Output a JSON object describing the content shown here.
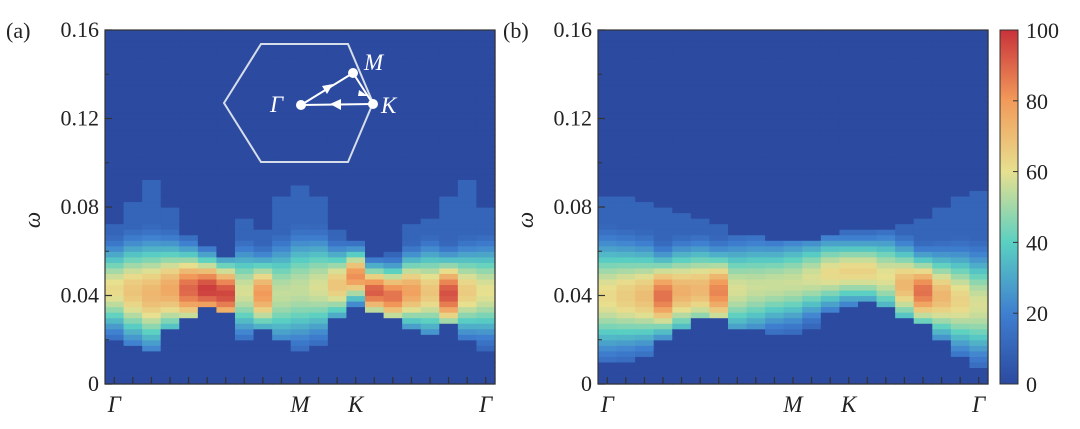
{
  "chart_data": [
    {
      "type": "heatmap",
      "panel_label": "(a)",
      "ylabel": "ω",
      "ylim": [
        0,
        0.16
      ],
      "yticks": [
        {
          "value": 0,
          "label": "0"
        },
        {
          "value": 0.04,
          "label": "0.04"
        },
        {
          "value": 0.08,
          "label": "0.08"
        },
        {
          "value": 0.12,
          "label": "0.12"
        },
        {
          "value": 0.16,
          "label": "0.16"
        }
      ],
      "x_points": 21,
      "xticks": [
        {
          "index": 0,
          "label": "Γ"
        },
        {
          "index": 10,
          "label": "M"
        },
        {
          "index": 13,
          "label": "K"
        },
        {
          "index": 20,
          "label": "Γ"
        }
      ],
      "colorscale_range": [
        0,
        100
      ],
      "columns": [
        {
          "peak": 0.043,
          "width": 0.013,
          "amp": 62,
          "top": 0.073,
          "bottom": 0.019
        },
        {
          "peak": 0.042,
          "width": 0.015,
          "amp": 68,
          "top": 0.083,
          "bottom": 0.017
        },
        {
          "peak": 0.041,
          "width": 0.016,
          "amp": 72,
          "top": 0.093,
          "bottom": 0.015
        },
        {
          "peak": 0.043,
          "width": 0.014,
          "amp": 76,
          "top": 0.079,
          "bottom": 0.024
        },
        {
          "peak": 0.043,
          "width": 0.012,
          "amp": 90,
          "top": 0.068,
          "bottom": 0.03
        },
        {
          "peak": 0.043,
          "width": 0.01,
          "amp": 98,
          "top": 0.062,
          "bottom": 0.035
        },
        {
          "peak": 0.041,
          "width": 0.01,
          "amp": 96,
          "top": 0.057,
          "bottom": 0.033
        },
        {
          "peak": 0.042,
          "width": 0.013,
          "amp": 58,
          "top": 0.075,
          "bottom": 0.021
        },
        {
          "peak": 0.041,
          "width": 0.011,
          "amp": 80,
          "top": 0.07,
          "bottom": 0.024
        },
        {
          "peak": 0.041,
          "width": 0.015,
          "amp": 55,
          "top": 0.086,
          "bottom": 0.02
        },
        {
          "peak": 0.043,
          "width": 0.016,
          "amp": 55,
          "top": 0.09,
          "bottom": 0.016
        },
        {
          "peak": 0.044,
          "width": 0.015,
          "amp": 58,
          "top": 0.084,
          "bottom": 0.018
        },
        {
          "peak": 0.045,
          "width": 0.011,
          "amp": 68,
          "top": 0.069,
          "bottom": 0.03
        },
        {
          "peak": 0.049,
          "width": 0.008,
          "amp": 82,
          "top": 0.065,
          "bottom": 0.035
        },
        {
          "peak": 0.042,
          "width": 0.008,
          "amp": 92,
          "top": 0.058,
          "bottom": 0.032
        },
        {
          "peak": 0.04,
          "width": 0.009,
          "amp": 88,
          "top": 0.059,
          "bottom": 0.029
        },
        {
          "peak": 0.042,
          "width": 0.011,
          "amp": 78,
          "top": 0.072,
          "bottom": 0.025
        },
        {
          "peak": 0.042,
          "width": 0.013,
          "amp": 68,
          "top": 0.075,
          "bottom": 0.022
        },
        {
          "peak": 0.041,
          "width": 0.011,
          "amp": 94,
          "top": 0.086,
          "bottom": 0.028
        },
        {
          "peak": 0.042,
          "width": 0.013,
          "amp": 66,
          "top": 0.093,
          "bottom": 0.02
        },
        {
          "peak": 0.042,
          "width": 0.014,
          "amp": 60,
          "top": 0.081,
          "bottom": 0.016
        }
      ],
      "inset": {
        "description": "hexagonal Brillouin zone with path Γ → M → K → Γ",
        "labels": {
          "gamma": "Γ",
          "m": "M",
          "k": "K"
        }
      }
    },
    {
      "type": "heatmap",
      "panel_label": "(b)",
      "ylabel": "ω",
      "ylim": [
        0,
        0.16
      ],
      "yticks": [
        {
          "value": 0,
          "label": "0"
        },
        {
          "value": 0.04,
          "label": "0.04"
        },
        {
          "value": 0.08,
          "label": "0.08"
        },
        {
          "value": 0.12,
          "label": "0.12"
        },
        {
          "value": 0.16,
          "label": "0.16"
        }
      ],
      "x_points": 21,
      "xticks": [
        {
          "index": 0,
          "label": "Γ"
        },
        {
          "index": 10,
          "label": "M"
        },
        {
          "index": 13,
          "label": "K"
        },
        {
          "index": 20,
          "label": "Γ"
        }
      ],
      "colorscale_range": [
        0,
        100
      ],
      "columns": [
        {
          "peak": 0.04,
          "width": 0.017,
          "amp": 62,
          "top": 0.086,
          "bottom": 0.01
        },
        {
          "peak": 0.04,
          "width": 0.016,
          "amp": 66,
          "top": 0.086,
          "bottom": 0.011
        },
        {
          "peak": 0.04,
          "width": 0.015,
          "amp": 70,
          "top": 0.083,
          "bottom": 0.013
        },
        {
          "peak": 0.04,
          "width": 0.012,
          "amp": 88,
          "top": 0.079,
          "bottom": 0.02
        },
        {
          "peak": 0.042,
          "width": 0.013,
          "amp": 74,
          "top": 0.077,
          "bottom": 0.025
        },
        {
          "peak": 0.043,
          "width": 0.013,
          "amp": 72,
          "top": 0.075,
          "bottom": 0.029
        },
        {
          "peak": 0.042,
          "width": 0.012,
          "amp": 84,
          "top": 0.072,
          "bottom": 0.031
        },
        {
          "peak": 0.043,
          "width": 0.014,
          "amp": 58,
          "top": 0.068,
          "bottom": 0.026
        },
        {
          "peak": 0.044,
          "width": 0.014,
          "amp": 56,
          "top": 0.068,
          "bottom": 0.024
        },
        {
          "peak": 0.045,
          "width": 0.013,
          "amp": 56,
          "top": 0.066,
          "bottom": 0.022
        },
        {
          "peak": 0.046,
          "width": 0.013,
          "amp": 56,
          "top": 0.065,
          "bottom": 0.022
        },
        {
          "peak": 0.048,
          "width": 0.012,
          "amp": 58,
          "top": 0.066,
          "bottom": 0.025
        },
        {
          "peak": 0.05,
          "width": 0.011,
          "amp": 62,
          "top": 0.068,
          "bottom": 0.032
        },
        {
          "peak": 0.051,
          "width": 0.01,
          "amp": 64,
          "top": 0.069,
          "bottom": 0.036
        },
        {
          "peak": 0.051,
          "width": 0.01,
          "amp": 64,
          "top": 0.069,
          "bottom": 0.037
        },
        {
          "peak": 0.049,
          "width": 0.012,
          "amp": 60,
          "top": 0.071,
          "bottom": 0.034
        },
        {
          "peak": 0.045,
          "width": 0.012,
          "amp": 72,
          "top": 0.072,
          "bottom": 0.031
        },
        {
          "peak": 0.042,
          "width": 0.011,
          "amp": 88,
          "top": 0.074,
          "bottom": 0.028
        },
        {
          "peak": 0.04,
          "width": 0.013,
          "amp": 72,
          "top": 0.079,
          "bottom": 0.02
        },
        {
          "peak": 0.038,
          "width": 0.015,
          "amp": 64,
          "top": 0.084,
          "bottom": 0.012
        },
        {
          "peak": 0.036,
          "width": 0.016,
          "amp": 58,
          "top": 0.087,
          "bottom": 0.008
        }
      ]
    }
  ],
  "colorbar": {
    "range": [
      0,
      100
    ],
    "ticks": [
      {
        "value": 0,
        "label": "0"
      },
      {
        "value": 20,
        "label": "20"
      },
      {
        "value": 40,
        "label": "40"
      },
      {
        "value": 60,
        "label": "60"
      },
      {
        "value": 80,
        "label": "80"
      },
      {
        "value": 100,
        "label": "100"
      }
    ],
    "colors": [
      "#2b4aa0",
      "#3f7fd0",
      "#5ad0c2",
      "#e7e08f",
      "#f29a5a",
      "#c8323a"
    ]
  }
}
